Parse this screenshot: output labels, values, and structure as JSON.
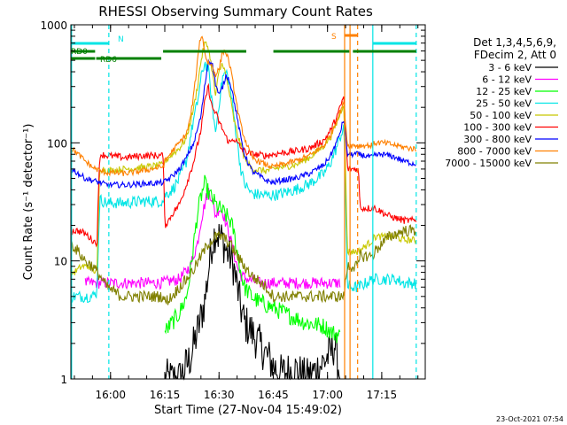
{
  "chart_data": {
    "type": "line",
    "title": "RHESSI Observing Summary Count Rates",
    "xlabel": "Start Time (27-Nov-04 15:49:02)",
    "ylabel": "Count Rate (s⁻¹ detector⁻¹)",
    "yscale": "log",
    "ylim": [
      1,
      1000
    ],
    "xlim_minutes_after_start": [
      0,
      98
    ],
    "x_ticks": [
      {
        "label": "16:00",
        "minute": 10.97
      },
      {
        "label": "16:15",
        "minute": 25.97
      },
      {
        "label": "16:30",
        "minute": 40.97
      },
      {
        "label": "16:45",
        "minute": 55.97
      },
      {
        "label": "17:00",
        "minute": 70.97
      },
      {
        "label": "17:15",
        "minute": 85.97
      }
    ],
    "y_ticks": [
      {
        "label": "1",
        "value": 1
      },
      {
        "label": "10",
        "value": 10
      },
      {
        "label": "100",
        "value": 100
      },
      {
        "label": "1000",
        "value": 1000
      }
    ],
    "legend": {
      "position": "top-right",
      "header": [
        "Det 1,3,4,5,6,9,",
        "FDecim 2, Att 0"
      ]
    },
    "timestamp": "23-Oct-2021 07:54",
    "flags": [
      {
        "label": "N",
        "color": "#00e5e5",
        "segments": [
          [
            0,
            10.5
          ],
          [
            83.5,
            95.5
          ]
        ]
      },
      {
        "label": "RD0",
        "color": "#008000",
        "segments": [
          [
            0,
            6.7
          ],
          [
            25.5,
            48.5
          ],
          [
            56,
            77
          ],
          [
            78,
            95.5
          ]
        ]
      },
      {
        "label": "RD6",
        "color": "#008000",
        "segments": [
          [
            0,
            6.7
          ],
          [
            7,
            25
          ]
        ]
      },
      {
        "label": "S",
        "color": "#ff8000",
        "segments": [
          [
            75.7,
            79.3
          ]
        ]
      }
    ],
    "markers": [
      {
        "color": "#00e5e5",
        "style": "solid",
        "minute": 0.2
      },
      {
        "color": "#00e5e5",
        "style": "dashed",
        "minute": 10.5
      },
      {
        "color": "#00e5e5",
        "style": "solid",
        "minute": 83.5
      },
      {
        "color": "#00e5e5",
        "style": "dashed",
        "minute": 95.5
      },
      {
        "color": "#ff8000",
        "style": "solid",
        "minute": 75.7
      },
      {
        "color": "#ff8000",
        "style": "solid",
        "minute": 77.2
      },
      {
        "color": "#ff8000",
        "style": "dashed",
        "minute": 79.3
      }
    ],
    "series": [
      {
        "name": "3 - 6 keV",
        "color": "#000000",
        "jitter": 0.35,
        "x": [
          26,
          30,
          33,
          35,
          37,
          38,
          39,
          40,
          41,
          42,
          43,
          44,
          45,
          46,
          47,
          48,
          50,
          52,
          54,
          56,
          58,
          62,
          65,
          68,
          70,
          72,
          73,
          74.5
        ],
        "y": [
          1.0,
          1.0,
          1.5,
          2.5,
          4.5,
          8,
          14,
          18,
          16,
          15,
          12,
          11,
          9,
          6,
          4,
          3,
          2.5,
          2,
          1.6,
          1.3,
          1.1,
          1.2,
          1.0,
          1.2,
          1.4,
          1.7,
          2,
          1.0
        ]
      },
      {
        "name": "6 - 12 keV",
        "color": "#ff00ff",
        "jitter": 0.1,
        "x": [
          4,
          10,
          20,
          25,
          30,
          33,
          35,
          36,
          37,
          38,
          39,
          40,
          41,
          42,
          43,
          44,
          45,
          46,
          47,
          49,
          52,
          55,
          58,
          62,
          66,
          70,
          72,
          73,
          74.5
        ],
        "y": [
          6.5,
          6.5,
          6.5,
          6.5,
          7,
          9,
          14,
          22,
          30,
          40,
          34,
          24,
          28,
          26,
          20,
          16,
          12,
          9,
          7.5,
          7,
          6.5,
          6.5,
          6.5,
          6.5,
          6.5,
          6.5,
          6.5,
          6.5,
          6.5
        ]
      },
      {
        "name": "12 - 25 keV",
        "color": "#00ff00",
        "jitter": 0.15,
        "x": [
          26,
          28,
          30,
          32,
          33,
          34,
          35,
          36,
          37,
          38,
          39,
          40,
          41,
          42,
          43,
          44,
          45,
          46,
          47,
          48,
          50,
          52,
          56,
          60,
          65,
          70,
          72,
          74.5
        ],
        "y": [
          2.5,
          3,
          3.6,
          5,
          8,
          14,
          25,
          35,
          45,
          38,
          34,
          30,
          28,
          26,
          24,
          22,
          18,
          12,
          8,
          6,
          5,
          4.5,
          4,
          3.5,
          3,
          2.8,
          2.5,
          2.3
        ]
      },
      {
        "name": "25 - 50 keV",
        "color": "#00e5e5",
        "jitter": 0.1,
        "x": [
          0.2,
          2,
          4,
          6,
          7.2,
          8,
          10,
          15,
          20,
          25.5,
          26,
          28,
          30,
          32,
          33,
          34,
          35,
          36,
          37,
          38,
          39,
          40,
          41,
          42,
          43,
          44,
          45,
          46,
          47,
          48,
          50,
          54,
          56,
          58,
          62,
          66,
          70,
          72,
          74,
          75.5,
          76.5,
          79.5,
          83.5,
          84,
          86,
          88,
          90,
          92,
          95.5
        ],
        "y": [
          5,
          5,
          5,
          5,
          5.5,
          33,
          31,
          31,
          32,
          32,
          36,
          40,
          50,
          70,
          110,
          160,
          220,
          350,
          480,
          420,
          220,
          120,
          220,
          360,
          400,
          300,
          180,
          100,
          60,
          45,
          37,
          36,
          36,
          37,
          40,
          45,
          55,
          70,
          100,
          140,
          6,
          6,
          7,
          7,
          7,
          7,
          7,
          6.5,
          6.5
        ]
      },
      {
        "name": "50 - 100 keV",
        "color": "#c8c800",
        "jitter": 0.06,
        "x": [
          0.2,
          1,
          3,
          5,
          7,
          7.2,
          8,
          10,
          15,
          20,
          25.5,
          26,
          28,
          30,
          32,
          33,
          34,
          35,
          36,
          37,
          38,
          39,
          40,
          41,
          42,
          43,
          44,
          45,
          46,
          47,
          48,
          50,
          54,
          56,
          58,
          62,
          66,
          70,
          72,
          74,
          75.5,
          76.5,
          79.5,
          83.5,
          84,
          86,
          88,
          90,
          92,
          95.5
        ],
        "y": [
          8,
          8,
          9,
          9,
          8,
          8,
          62,
          58,
          60,
          62,
          65,
          70,
          80,
          90,
          110,
          150,
          200,
          300,
          500,
          700,
          650,
          420,
          250,
          400,
          480,
          350,
          250,
          160,
          120,
          95,
          75,
          60,
          58,
          60,
          62,
          65,
          75,
          95,
          115,
          160,
          220,
          12,
          12,
          15,
          16,
          16,
          16,
          16,
          15,
          15
        ]
      },
      {
        "name": "100 - 300 keV",
        "color": "#ff0000",
        "jitter": 0.06,
        "x": [
          0.2,
          2,
          4,
          6,
          7.2,
          8,
          10,
          15,
          20,
          25.5,
          26,
          27,
          28,
          30,
          32,
          34,
          36,
          37,
          38,
          39,
          40,
          41,
          42,
          43,
          44,
          45,
          46,
          47,
          48,
          50,
          54,
          56,
          58,
          62,
          66,
          70,
          72,
          74,
          75.5,
          76.5,
          79.5,
          80,
          83.5,
          84,
          86,
          88,
          90,
          92,
          95.5
        ],
        "y": [
          18,
          18,
          17,
          15,
          14,
          80,
          78,
          75,
          78,
          78,
          20,
          22,
          25,
          30,
          45,
          70,
          130,
          220,
          300,
          200,
          180,
          150,
          130,
          110,
          100,
          110,
          100,
          90,
          85,
          80,
          78,
          80,
          82,
          85,
          90,
          105,
          130,
          180,
          250,
          60,
          60,
          28,
          28,
          28,
          26,
          24,
          23,
          22,
          22
        ]
      },
      {
        "name": "300 - 800 keV",
        "color": "#0000ff",
        "jitter": 0.05,
        "x": [
          0.2,
          2,
          4,
          6,
          8,
          10,
          15,
          20,
          25.5,
          26,
          28,
          30,
          32,
          34,
          35,
          36,
          37,
          38,
          39,
          40,
          41,
          42,
          43,
          44,
          45,
          46,
          47,
          48,
          50,
          54,
          56,
          58,
          62,
          66,
          70,
          72,
          74,
          75.5,
          76.5,
          79.5,
          83.5,
          84,
          86,
          88,
          90,
          92,
          95.5
        ],
        "y": [
          60,
          55,
          50,
          48,
          46,
          44,
          44,
          45,
          46,
          47,
          52,
          60,
          75,
          100,
          130,
          170,
          300,
          500,
          480,
          320,
          250,
          300,
          380,
          330,
          240,
          160,
          110,
          80,
          58,
          48,
          46,
          48,
          50,
          55,
          65,
          80,
          110,
          160,
          80,
          80,
          75,
          78,
          80,
          78,
          75,
          70,
          66
        ]
      },
      {
        "name": "800 - 7000 keV",
        "color": "#ff8000",
        "jitter": 0.05,
        "x": [
          0.2,
          2,
          4,
          6,
          8,
          10,
          15,
          20,
          25.5,
          26,
          28,
          30,
          32,
          33,
          34,
          35,
          35.5,
          36,
          36.5,
          37,
          37.5,
          38,
          39,
          40,
          41,
          42,
          43,
          44,
          45,
          46,
          47,
          48,
          50,
          54,
          56,
          58,
          62,
          66,
          70,
          72,
          74,
          75.5,
          76.5,
          79.5,
          83.5,
          84,
          86,
          88,
          90,
          92,
          95.5
        ],
        "y": [
          90,
          80,
          70,
          62,
          58,
          56,
          55,
          58,
          63,
          70,
          85,
          100,
          120,
          160,
          260,
          480,
          700,
          800,
          750,
          600,
          500,
          480,
          450,
          380,
          420,
          600,
          580,
          450,
          300,
          200,
          140,
          110,
          75,
          65,
          62,
          65,
          70,
          78,
          95,
          120,
          170,
          220,
          95,
          95,
          95,
          100,
          100,
          98,
          95,
          92,
          88
        ]
      },
      {
        "name": "7000 - 15000 keV",
        "color": "#808000",
        "jitter": 0.1,
        "x": [
          0.2,
          2,
          4,
          6,
          8,
          10,
          14,
          18,
          22,
          25.5,
          26,
          28,
          30,
          32,
          34,
          36,
          38,
          40,
          42,
          44,
          46,
          48,
          50,
          54,
          56,
          58,
          62,
          66,
          70,
          72,
          74,
          75.5,
          76.5,
          79.5,
          80,
          83.5,
          84,
          86,
          88,
          90,
          92,
          95.5
        ],
        "y": [
          14,
          12,
          10,
          9,
          7.5,
          6,
          5,
          5,
          5,
          5,
          4.5,
          5,
          6,
          7,
          8.5,
          11,
          14,
          16,
          16,
          14,
          11,
          9,
          7.5,
          6,
          5,
          5,
          5,
          5,
          5,
          5,
          5,
          5,
          9,
          9,
          11,
          11,
          12,
          14,
          16,
          17,
          18,
          18
        ]
      }
    ]
  }
}
